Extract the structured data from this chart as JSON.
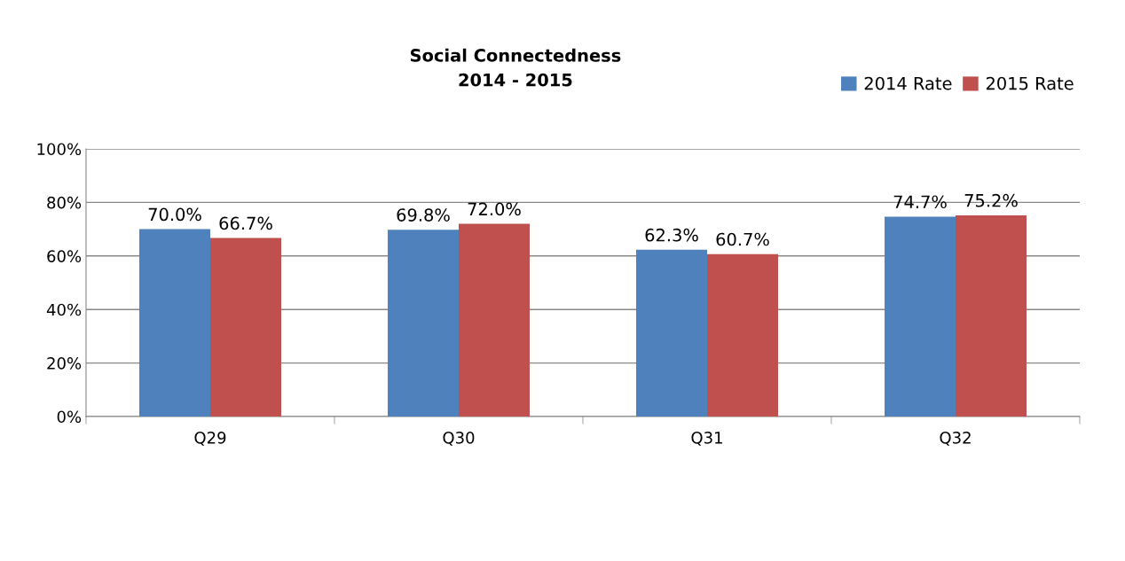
{
  "chart_data": {
    "type": "bar",
    "title": "Social Connectedness\n2014 - 2015",
    "categories": [
      "Q29",
      "Q30",
      "Q31",
      "Q32"
    ],
    "series": [
      {
        "name": "2014 Rate",
        "color": "#4f81bd",
        "values": [
          70.0,
          69.8,
          62.3,
          74.7
        ],
        "value_labels": [
          "70.0%",
          "69.8%",
          "62.3%",
          "74.7%"
        ]
      },
      {
        "name": "2015 Rate",
        "color": "#c0504d",
        "values": [
          66.7,
          72.0,
          60.7,
          75.2
        ],
        "value_labels": [
          "66.7%",
          "72.0%",
          "60.7%",
          "75.2%"
        ]
      }
    ],
    "ylim": [
      0,
      100
    ],
    "yticks": [
      {
        "value": 0,
        "label": "0%"
      },
      {
        "value": 20,
        "label": "20%"
      },
      {
        "value": 40,
        "label": "40%"
      },
      {
        "value": 60,
        "label": "60%"
      },
      {
        "value": 80,
        "label": "80%"
      },
      {
        "value": 100,
        "label": "100%"
      }
    ],
    "grid": "y",
    "legend": "top right"
  }
}
